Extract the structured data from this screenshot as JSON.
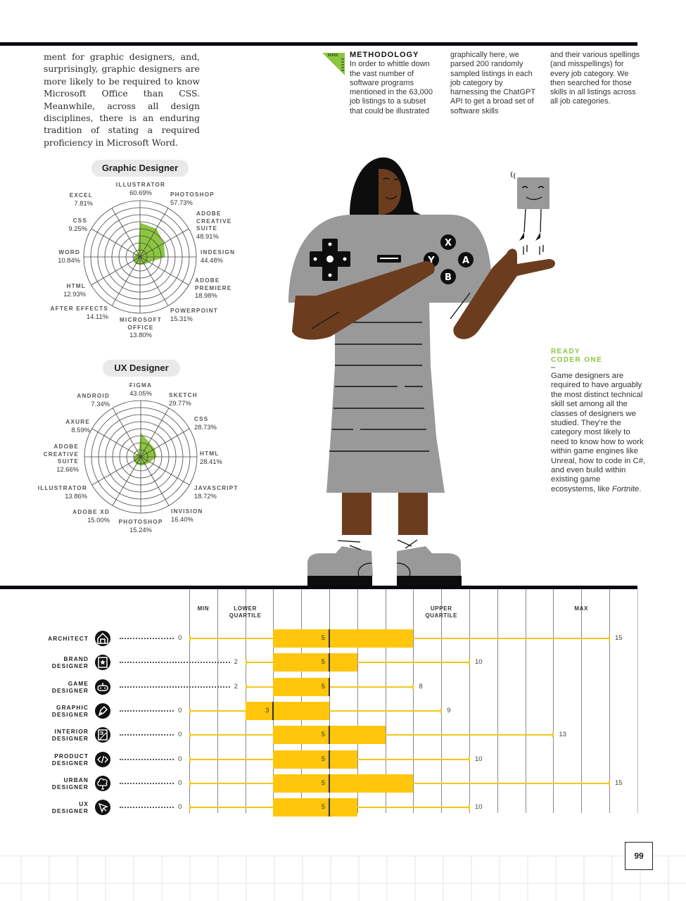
{
  "body_copy": "ment for graphic designers, and, surprisingly, graphic designers are more likely to be required to know Microsoft Office than CSS. Meanwhile, across all design disciplines, there is an enduring tradition of stating a required proficiency in Microsoft Word.",
  "methodology": {
    "title": "METHODOLOGY",
    "col1": "In order to whittle down the vast number of software programs mentioned in the 63,000 job listings to a subset that could be illustrated",
    "col2": "graphically here, we parsed 200 randomly sampled listings in each job category by harnessing the ChatGPT API to get a broad set of software skills",
    "col3": "and their various spellings (and misspellings) for every job category. We then searched for those skills in all listings across all job categories.",
    "icon_color": "#8cc63f"
  },
  "note": {
    "title_line1": "READY",
    "title_line2": "CODER ONE",
    "dash": "–",
    "body": "Game designers are required to have arguably the most distinct technical skill set among all the classes of designers we studied. They’re the category most likely to need to know how to work within game engines like Unreal, how to code in C#, and even build within existing game ecosystems, like ",
    "body_italic": "Fortnite",
    "body_end": "."
  },
  "illustration": {
    "buttons": [
      "X",
      "Y",
      "A",
      "B"
    ]
  },
  "colors": {
    "radar_fill": "#8cc63f",
    "box_fill": "#ffc60b",
    "whisker": "#f4c520",
    "rule": "#0a0a12"
  },
  "page_number": "99",
  "chart_data": [
    {
      "type": "radar",
      "title": "Graphic Designer",
      "categories": [
        "ILLUSTRATOR",
        "PHOTOSHOP",
        "ADOBE CREATIVE SUITE",
        "INDESIGN",
        "ADOBE PREMIERE",
        "POWERPOINT",
        "MICROSOFT OFFICE",
        "AFTER EFFECTS",
        "HTML",
        "WORD",
        "CSS",
        "EXCEL"
      ],
      "values": [
        60.69,
        57.73,
        48.91,
        44.48,
        18.98,
        15.31,
        13.8,
        14.11,
        12.93,
        10.84,
        9.25,
        7.81
      ],
      "labels": [
        "60.69%",
        "57.73%",
        "48.91%",
        "44.48%",
        "18.98%",
        "15.31%",
        "13.80%",
        "14.11%",
        "12.93%",
        "10.84%",
        "9.25%",
        "7.81%"
      ],
      "unit": "%"
    },
    {
      "type": "radar",
      "title": "UX Designer",
      "categories": [
        "FIGMA",
        "SKETCH",
        "CSS",
        "HTML",
        "JAVASCRIPT",
        "INVISION",
        "PHOTOSHOP",
        "ADOBE XD",
        "ILLUSTRATOR",
        "ADOBE CREATIVE SUITE",
        "AXURE",
        "ANDROID"
      ],
      "values": [
        43.05,
        29.77,
        28.73,
        28.41,
        18.72,
        16.4,
        15.24,
        15.0,
        13.86,
        12.66,
        8.59,
        7.34
      ],
      "labels": [
        "43.05%",
        "29.77%",
        "28.73%",
        "28.41%",
        "18.72%",
        "16.40%",
        "15.24%",
        "15.00%",
        "13.86%",
        "12.66%",
        "8.59%",
        "7.34%"
      ],
      "unit": "%"
    },
    {
      "type": "boxplot",
      "column_headers": [
        "MIN",
        "LOWER QUARTILE",
        "UPPER QUARTILE",
        "MAX"
      ],
      "xlim": [
        0,
        16
      ],
      "categories": [
        "ARCHITECT",
        "BRAND DESIGNER",
        "GAME DESIGNER",
        "GRAPHIC DESIGNER",
        "INTERIOR DESIGNER",
        "PRODUCT DESIGNER",
        "URBAN DESIGNER",
        "UX DESIGNER"
      ],
      "series": [
        {
          "name": "ARCHITECT",
          "min": 0,
          "q1": 3,
          "median": 5,
          "q3": 8,
          "max": 15
        },
        {
          "name": "BRAND DESIGNER",
          "min": 2,
          "q1": 3,
          "median": 5,
          "q3": 6,
          "max": 10
        },
        {
          "name": "GAME DESIGNER",
          "min": 2,
          "q1": 3,
          "median": 5,
          "q3": 5,
          "max": 8
        },
        {
          "name": "GRAPHIC DESIGNER",
          "min": 0,
          "q1": 2,
          "median": 3,
          "q3": 5,
          "max": 9
        },
        {
          "name": "INTERIOR DESIGNER",
          "min": 0,
          "q1": 3,
          "median": 5,
          "q3": 7,
          "max": 13
        },
        {
          "name": "PRODUCT DESIGNER",
          "min": 0,
          "q1": 3,
          "median": 5,
          "q3": 6,
          "max": 10
        },
        {
          "name": "URBAN DESIGNER",
          "min": 0,
          "q1": 3,
          "median": 5,
          "q3": 8,
          "max": 15
        },
        {
          "name": "UX DESIGNER",
          "min": 0,
          "q1": 3,
          "median": 5,
          "q3": 6,
          "max": 10
        }
      ],
      "row_labels": [
        {
          "line1": "ARCHITECT",
          "line2": "",
          "icon": "house-icon"
        },
        {
          "line1": "BRAND",
          "line2": "DESIGNER",
          "icon": "brand-star-icon"
        },
        {
          "line1": "GAME",
          "line2": "DESIGNER",
          "icon": "gamepad-icon"
        },
        {
          "line1": "GRAPHIC",
          "line2": "DESIGNER",
          "icon": "pen-nib-icon"
        },
        {
          "line1": "INTERIOR",
          "line2": "DESIGNER",
          "icon": "floorplan-icon"
        },
        {
          "line1": "PRODUCT",
          "line2": "DESIGNER",
          "icon": "code-icon"
        },
        {
          "line1": "URBAN",
          "line2": "DESIGNER",
          "icon": "tree-icon"
        },
        {
          "line1": "UX",
          "line2": "DESIGNER",
          "icon": "cursor-icon"
        }
      ]
    }
  ]
}
